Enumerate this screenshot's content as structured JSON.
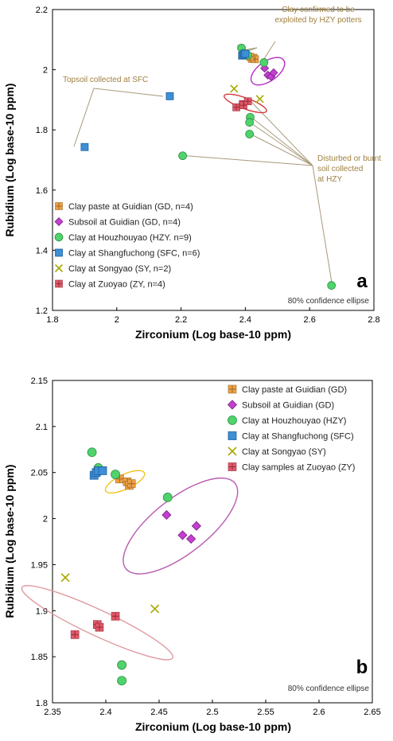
{
  "symbols": {
    "GD": {
      "shape": "square-plus",
      "fill": "#f0a044",
      "stroke": "#9a6a2a"
    },
    "SS": {
      "shape": "diamond",
      "fill": "#c23fcf",
      "stroke": "#7a1f85"
    },
    "HZY": {
      "shape": "circle",
      "fill": "#4fd36b",
      "stroke": "#2f8f45"
    },
    "SFC": {
      "shape": "square",
      "fill": "#3d8fd6",
      "stroke": "#1d5f9c"
    },
    "SY": {
      "shape": "x",
      "fill": "#c8c80a",
      "stroke": "#a8a800"
    },
    "ZY": {
      "shape": "square-plus",
      "fill": "#e05a6a",
      "stroke": "#9a2a38"
    }
  },
  "chart_data": [
    {
      "type": "scatter",
      "panel_label": "a",
      "xlabel": "Zirconium (Log base-10 ppm)",
      "ylabel": "Rubidium (Log base-10 ppm)",
      "xlim": [
        1.8,
        2.8
      ],
      "ylim": [
        1.2,
        2.2
      ],
      "x_ticks": [
        "1.8",
        "2",
        "2.2",
        "2.4",
        "2.6",
        "2.8"
      ],
      "y_ticks": [
        "1.2",
        "1.4",
        "1.6",
        "1.8",
        "2",
        "2.2"
      ],
      "footnote": "80% confidence ellipse",
      "legend_position": "bottom-left",
      "series": [
        {
          "name": "Clay paste at Guidian (GD, n=4)",
          "symbol": "GD",
          "x": [
            2.42,
            2.425,
            2.43,
            2.415
          ],
          "y": [
            2.036,
            2.04,
            2.035,
            2.043
          ]
        },
        {
          "name": "Subsoil at Guidian (GD, n=4)",
          "symbol": "SS",
          "x": [
            2.46,
            2.47,
            2.48,
            2.488
          ],
          "y": [
            2.005,
            1.982,
            1.977,
            1.99
          ]
        },
        {
          "name": "Clay at Houzhouyao (HZY. n=9)",
          "symbol": "HZY",
          "x": [
            2.388,
            2.395,
            2.408,
            2.458,
            2.415,
            2.413,
            2.413,
            2.205,
            2.668
          ],
          "y": [
            2.072,
            2.055,
            2.048,
            2.024,
            1.842,
            1.825,
            1.786,
            1.714,
            1.283
          ]
        },
        {
          "name": "Clay at Shangfuchong (SFC, n=6)",
          "symbol": "SFC",
          "x": [
            2.39,
            2.393,
            2.397,
            2.4,
            2.165,
            1.9
          ],
          "y": [
            2.047,
            2.05,
            2.053,
            2.053,
            1.912,
            1.743
          ]
        },
        {
          "name": "Clay at Songyao (SY, n=2)",
          "symbol": "SY",
          "x": [
            2.365,
            2.445
          ],
          "y": [
            1.937,
            1.903
          ]
        },
        {
          "name": "Clay at Zuoyao (ZY, n=4)",
          "symbol": "ZY",
          "x": [
            2.372,
            2.392,
            2.394,
            2.408
          ],
          "y": [
            1.875,
            1.886,
            1.882,
            1.895
          ]
        }
      ],
      "ellipses": [
        {
          "series": "Clay paste at Guidian (GD, n=4)",
          "color": "#f3c21a",
          "cx": 2.42,
          "cy": 2.039,
          "rx": 0.012,
          "ry": 0.008,
          "angle_deg": -20
        },
        {
          "series": "Subsoil at Guidian (GD, n=4)",
          "color": "#b82ec9",
          "cx": 2.47,
          "cy": 1.995,
          "rx": 0.06,
          "ry": 0.033,
          "angle_deg": -35
        },
        {
          "series": "Clay at Zuoyao (ZY, n=4)",
          "color": "#d43a3a",
          "cx": 2.4,
          "cy": 1.888,
          "rx": 0.07,
          "ry": 0.018,
          "angle_deg": 20
        }
      ],
      "annotations": [
        {
          "text": [
            "Topsoil collected at SFC"
          ],
          "color": "#a08040"
        },
        {
          "text": [
            "Clay confirmed to be",
            "exploited by HZY potters"
          ],
          "color": "#a08040"
        },
        {
          "text": [
            "Disturbed or burnt",
            "soil collected",
            "at HZY"
          ],
          "color": "#a08040"
        }
      ]
    },
    {
      "type": "scatter",
      "panel_label": "b",
      "xlabel": "Zirconium (Log base-10 ppm)",
      "ylabel": "Rubidium (Log base-10 ppm)",
      "xlim": [
        2.35,
        2.65
      ],
      "ylim": [
        1.8,
        2.15
      ],
      "x_ticks": [
        "2.35",
        "2.4",
        "2.45",
        "2.5",
        "2.55",
        "2.6",
        "2.65"
      ],
      "y_ticks": [
        "1.8",
        "1.85",
        "1.9",
        "1.95",
        "2",
        "2.05",
        "2.1",
        "2.15"
      ],
      "footnote": "80% confidence ellipse",
      "legend_position": "top-right",
      "series": [
        {
          "name": "Clay paste at Guidian (GD)",
          "symbol": "GD",
          "x": [
            2.413,
            2.42,
            2.422,
            2.424
          ],
          "y": [
            2.043,
            2.04,
            2.036,
            2.038
          ]
        },
        {
          "name": "Subsoil at Guidian (GD)",
          "symbol": "SS",
          "x": [
            2.457,
            2.472,
            2.48,
            2.485
          ],
          "y": [
            2.004,
            1.982,
            1.978,
            1.992
          ]
        },
        {
          "name": "Clay at Houzhouyao (HZY)",
          "symbol": "HZY",
          "x": [
            2.387,
            2.393,
            2.409,
            2.458,
            2.415,
            2.415
          ],
          "y": [
            2.072,
            2.055,
            2.048,
            2.023,
            1.841,
            1.824
          ]
        },
        {
          "name": "Clay at Shangfuchong (SFC)",
          "symbol": "SFC",
          "x": [
            2.389,
            2.391,
            2.393,
            2.397
          ],
          "y": [
            2.047,
            2.05,
            2.052,
            2.052
          ]
        },
        {
          "name": "Clay at Songyao (SY)",
          "symbol": "SY",
          "x": [
            2.362,
            2.446
          ],
          "y": [
            1.936,
            1.902
          ]
        },
        {
          "name": "Clay samples at Zuoyao (ZY)",
          "symbol": "ZY",
          "x": [
            2.371,
            2.392,
            2.394,
            2.409
          ],
          "y": [
            1.874,
            1.885,
            1.882,
            1.894
          ]
        }
      ],
      "ellipses": [
        {
          "series": "Clay paste at Guidian (GD)",
          "color": "#f3c21a",
          "cx": 2.418,
          "cy": 2.04,
          "rx": 0.02,
          "ry": 0.008,
          "angle_deg": -25
        },
        {
          "series": "Subsoil at Guidian (GD)",
          "color": "#b85bb0",
          "cx": 2.47,
          "cy": 1.992,
          "rx": 0.065,
          "ry": 0.03,
          "angle_deg": -38
        },
        {
          "series": "Clay samples at Zuoyao (ZY)",
          "color": "#e09aa0",
          "cx": 2.392,
          "cy": 1.887,
          "rx": 0.078,
          "ry": 0.014,
          "angle_deg": 25
        }
      ]
    }
  ]
}
